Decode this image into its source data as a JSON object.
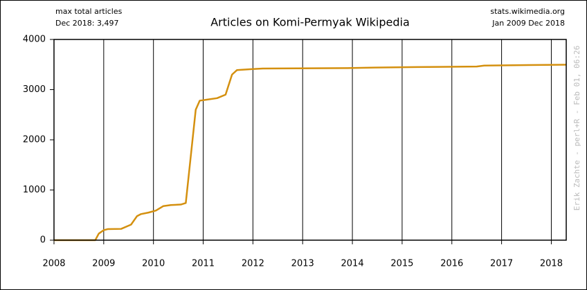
{
  "chart_data": {
    "type": "line",
    "title": "Articles on Komi-Permyak Wikipedia",
    "note_left": [
      "max total articles",
      "Dec 2018: 3,497"
    ],
    "note_right": [
      "stats.wikimedia.org",
      "Jan 2009 Dec 2018"
    ],
    "credit": "Erik Zachte  -  perl+R  -  Feb 01, 06:26",
    "color": "#d4900f",
    "x": [
      2008.0,
      2008.83,
      2008.9,
      2009.0,
      2009.08,
      2009.35,
      2009.55,
      2009.67,
      2009.75,
      2009.9,
      2010.05,
      2010.2,
      2010.35,
      2010.55,
      2010.65,
      2010.85,
      2010.93,
      2011.07,
      2011.28,
      2011.45,
      2011.58,
      2011.68,
      2012.0,
      2012.2,
      2013.9,
      2014.45,
      2015.3,
      2016.5,
      2016.65,
      2018.3
    ],
    "values": [
      0,
      0,
      130,
      200,
      220,
      225,
      310,
      480,
      520,
      550,
      590,
      680,
      700,
      710,
      740,
      2600,
      2780,
      2800,
      2830,
      2900,
      3300,
      3390,
      3410,
      3420,
      3430,
      3440,
      3450,
      3460,
      3480,
      3497
    ],
    "xlim": [
      2008,
      2018.3
    ],
    "xticks": [
      2008,
      2009,
      2010,
      2011,
      2012,
      2013,
      2014,
      2015,
      2016,
      2017,
      2018
    ],
    "ylim": [
      0,
      4000
    ],
    "yticks": [
      0,
      1000,
      2000,
      3000,
      4000
    ],
    "grid": true
  }
}
